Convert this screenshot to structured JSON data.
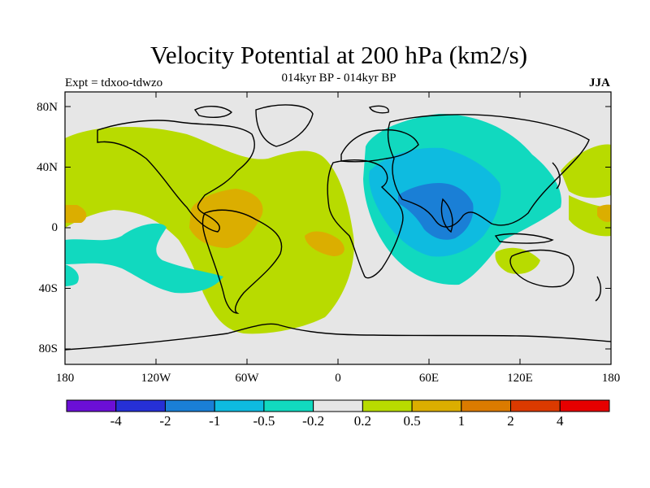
{
  "header": {
    "title": "Velocity Potential at 200 hPa (km2/s)",
    "experiment": "Expt = tdxoo-tdwzo",
    "period": "014kyr BP - 014kyr BP",
    "season": "JJA"
  },
  "map": {
    "lat_labels": [
      "80N",
      "40N",
      "0",
      "40S",
      "80S"
    ],
    "lon_labels": [
      "180",
      "120W",
      "60W",
      "0",
      "60E",
      "120E",
      "180"
    ],
    "background_color": "#e6e6e6"
  },
  "colorbar": {
    "levels": [
      "-4",
      "-2",
      "-1",
      "-0.5",
      "-0.2",
      "0.2",
      "0.5",
      "1",
      "2",
      "4"
    ],
    "colors": [
      "#6b0fd6",
      "#2630d6",
      "#1a7fd6",
      "#0ebbe0",
      "#11d9bf",
      "#e6e6e6",
      "#b8db00",
      "#dbae00",
      "#db7b00",
      "#db3a00",
      "#e60000"
    ]
  }
}
